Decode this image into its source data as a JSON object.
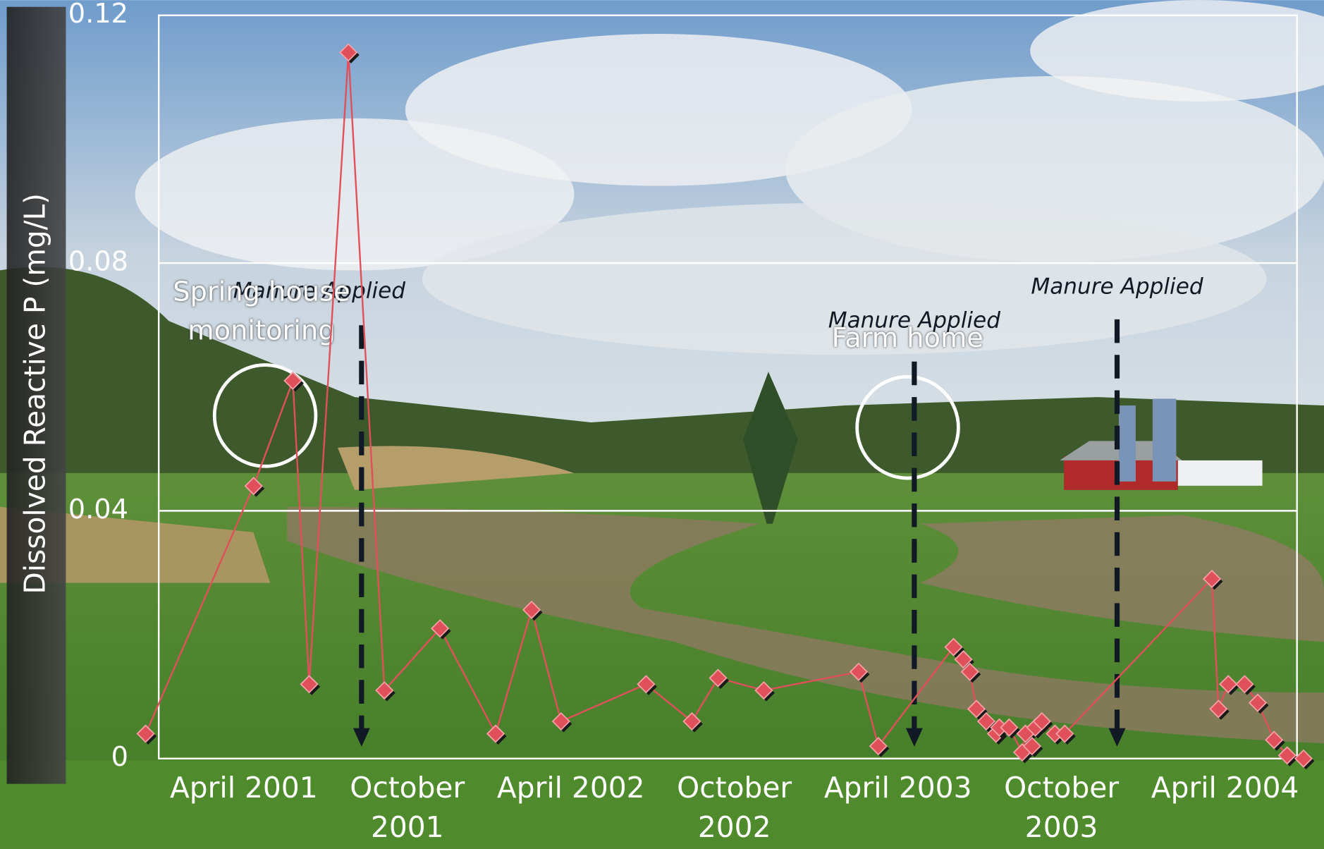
{
  "chart_data": {
    "type": "line",
    "y_label": "Dissolved Reactive P (mg/L)",
    "x": [
      2000.95,
      2001.28,
      2001.4,
      2001.45,
      2001.57,
      2001.68,
      2001.85,
      2002.02,
      2002.13,
      2002.22,
      2002.48,
      2002.62,
      2002.7,
      2002.84,
      2003.13,
      2003.19,
      2003.42,
      2003.45,
      2003.47,
      2003.49,
      2003.52,
      2003.55,
      2003.56,
      2003.59,
      2003.63,
      2003.64,
      2003.66,
      2003.67,
      2003.69,
      2003.73,
      2003.76,
      2004.21,
      2004.23,
      2004.26,
      2004.31,
      2004.35,
      2004.4,
      2004.44,
      2004.49
    ],
    "series": [
      {
        "color": "#e0505a",
        "values": [
          0.004,
          0.044,
          0.061,
          0.012,
          0.114,
          0.011,
          0.021,
          0.004,
          0.024,
          0.006,
          0.012,
          0.006,
          0.013,
          0.011,
          0.014,
          0.002,
          0.018,
          0.016,
          0.014,
          0.008,
          0.006,
          0.004,
          0.005,
          0.005,
          0.001,
          0.004,
          0.002,
          0.005,
          0.006,
          0.004,
          0.004,
          0.029,
          0.008,
          0.012,
          0.012,
          0.009,
          0.003,
          0.0005,
          0
        ]
      }
    ],
    "xlim": [
      2000.99,
      2004.47
    ],
    "ylim": [
      0,
      0.12
    ],
    "yticks": [
      0,
      0.04,
      0.08,
      0.12
    ],
    "xticks": [
      {
        "value": 2001.25,
        "label": "April 2001"
      },
      {
        "value": 2001.75,
        "label": "October 2001"
      },
      {
        "value": 2002.25,
        "label": "April 2002"
      },
      {
        "value": 2002.75,
        "label": "October 2002"
      },
      {
        "value": 2003.25,
        "label": "April 2003"
      },
      {
        "value": 2003.75,
        "label": "October 2003"
      },
      {
        "value": 2004.25,
        "label": "April 2004"
      }
    ],
    "grid": true,
    "annotations": [
      {
        "text": "Manure Applied",
        "x": 2001.61
      },
      {
        "text": "Manure Applied",
        "x": 2003.3
      },
      {
        "text": "Manure Applied",
        "x": 2003.92
      },
      {
        "text": "Spring house monitoring",
        "x": 2001.33
      },
      {
        "text": "Farm home",
        "x": 2003.3
      }
    ]
  }
}
